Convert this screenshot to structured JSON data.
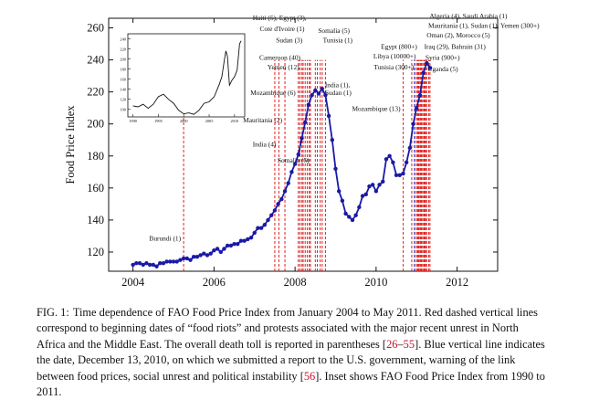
{
  "chart_data": {
    "type": "line",
    "ylabel": "Food Price Index",
    "xlabel": "",
    "xlim": [
      2003.4,
      2013.0
    ],
    "ylim": [
      108,
      266
    ],
    "xticks": [
      2004,
      2006,
      2008,
      2010,
      2012
    ],
    "yticks": [
      120,
      140,
      160,
      180,
      200,
      220,
      240,
      260
    ],
    "series": [
      {
        "name": "FAO Food Price Index",
        "color": "#1a1aa6",
        "x": [
          2004.0,
          2004.083,
          2004.167,
          2004.25,
          2004.333,
          2004.417,
          2004.5,
          2004.583,
          2004.667,
          2004.75,
          2004.833,
          2004.917,
          2005.0,
          2005.083,
          2005.167,
          2005.25,
          2005.333,
          2005.417,
          2005.5,
          2005.583,
          2005.667,
          2005.75,
          2005.833,
          2005.917,
          2006.0,
          2006.083,
          2006.167,
          2006.25,
          2006.333,
          2006.417,
          2006.5,
          2006.583,
          2006.667,
          2006.75,
          2006.833,
          2006.917,
          2007.0,
          2007.083,
          2007.167,
          2007.25,
          2007.333,
          2007.417,
          2007.5,
          2007.583,
          2007.667,
          2007.75,
          2007.833,
          2007.917,
          2008.0,
          2008.083,
          2008.167,
          2008.25,
          2008.333,
          2008.417,
          2008.5,
          2008.583,
          2008.667,
          2008.75,
          2008.833,
          2008.917,
          2009.0,
          2009.083,
          2009.167,
          2009.25,
          2009.333,
          2009.417,
          2009.5,
          2009.583,
          2009.667,
          2009.75,
          2009.833,
          2009.917,
          2010.0,
          2010.083,
          2010.167,
          2010.25,
          2010.333,
          2010.417,
          2010.5,
          2010.583,
          2010.667,
          2010.75,
          2010.833,
          2010.917,
          2011.0,
          2011.083,
          2011.167,
          2011.25,
          2011.333
        ],
        "y": [
          112,
          113,
          113,
          112,
          113,
          112,
          112,
          111,
          113,
          113,
          114,
          114,
          114,
          114,
          115,
          116,
          116,
          115,
          117,
          117,
          118,
          119,
          118,
          119,
          121,
          122,
          120,
          122,
          124,
          124,
          125,
          125,
          127,
          127,
          128,
          129,
          132,
          135,
          135,
          137,
          140,
          143,
          146,
          150,
          153,
          158,
          163,
          170,
          175,
          181,
          191,
          201,
          212,
          218,
          221,
          219,
          222,
          218,
          205,
          190,
          172,
          158,
          152,
          144,
          142,
          140,
          143,
          148,
          155,
          156,
          161,
          162,
          158,
          162,
          164,
          178,
          180,
          176,
          168,
          168,
          169,
          176,
          185,
          200,
          210,
          218,
          232,
          238,
          235
        ]
      }
    ],
    "event_lines": {
      "color": "#e02020",
      "dates": [
        2005.25,
        2007.5,
        2007.6,
        2007.75,
        2008.08,
        2008.12,
        2008.17,
        2008.2,
        2008.25,
        2008.3,
        2008.35,
        2008.38,
        2008.5,
        2008.55,
        2008.62,
        2008.67,
        2008.75,
        2010.67,
        2010.88,
        2011.0,
        2011.03,
        2011.05,
        2011.08,
        2011.1,
        2011.12,
        2011.15,
        2011.18,
        2011.2,
        2011.22,
        2011.25,
        2011.3,
        2011.33
      ]
    },
    "highlight_line": {
      "date": 2010.95,
      "color": "#2020c0",
      "label": "December 13, 2010"
    },
    "annotations": [
      {
        "text": "Burundi (1)",
        "x": 2005.25,
        "y": 127
      },
      {
        "text": "Somalia (5)",
        "x": 2007.5,
        "y": 176
      },
      {
        "text": "India (4)",
        "x": 2007.6,
        "y": 186
      },
      {
        "text": "Mauritania (2)",
        "x": 2007.75,
        "y": 201
      },
      {
        "text": "Mozambique (6)",
        "x": 2008.08,
        "y": 218
      },
      {
        "text": "Yemen (12)",
        "x": 2008.17,
        "y": 234
      },
      {
        "text": "Cameroon (40)",
        "x": 2008.2,
        "y": 240
      },
      {
        "text": "Sudan (3)",
        "x": 2008.25,
        "y": 251
      },
      {
        "text": "Cote d'Ivoire (1)",
        "x": 2008.3,
        "y": 258
      },
      {
        "text": "Haiti (5), Egypt (3),",
        "x": 2008.35,
        "y": 265
      },
      {
        "text": "Somalia (5)",
        "x": 2008.5,
        "y": 257
      },
      {
        "text": "Tunisia (1)",
        "x": 2008.62,
        "y": 251
      },
      {
        "text": "India (1),",
        "x": 2008.67,
        "y": 223
      },
      {
        "text": "Sudan (1)",
        "x": 2008.67,
        "y": 218
      },
      {
        "text": "Mozambique (13)",
        "x": 2010.67,
        "y": 208
      },
      {
        "text": "Tunisia (300+)",
        "x": 2011.0,
        "y": 234
      },
      {
        "text": "Libya (10000+)",
        "x": 2011.05,
        "y": 241
      },
      {
        "text": "Egypt (800+)",
        "x": 2011.08,
        "y": 247
      },
      {
        "text": "Iraq (29), Bahrain (31)",
        "x": 2011.12,
        "y": 247
      },
      {
        "text": "Syria (900+)",
        "x": 2011.15,
        "y": 240
      },
      {
        "text": "Uganda (5)",
        "x": 2011.2,
        "y": 233
      },
      {
        "text": "Oman (2), Morocco (5)",
        "x": 2011.18,
        "y": 254
      },
      {
        "text": "Mauritania (1), Sudan (1), Yemen (300+)",
        "x": 2011.22,
        "y": 260
      },
      {
        "text": "Algeria (4), Saudi Arabia (1)",
        "x": 2011.25,
        "y": 266
      }
    ],
    "inset": {
      "type": "line",
      "title": "FAO Food Price Index 1990-2011",
      "xticks": [
        1990,
        1995,
        2000,
        2005,
        2010
      ],
      "yticks": [
        100,
        120,
        140,
        160,
        180,
        200,
        220,
        240
      ],
      "xlim": [
        1989,
        2012
      ],
      "ylim": [
        85,
        250
      ],
      "x": [
        1990,
        1991,
        1992,
        1993,
        1994,
        1995,
        1996,
        1997,
        1998,
        1999,
        2000,
        2001,
        2002,
        2003,
        2004,
        2005,
        2006,
        2007,
        2007.5,
        2008,
        2008.3,
        2008.6,
        2009,
        2009.5,
        2010,
        2010.5,
        2011,
        2011.3
      ],
      "y": [
        107,
        105,
        110,
        102,
        110,
        125,
        130,
        120,
        112,
        98,
        91,
        93,
        90,
        98,
        112,
        115,
        125,
        150,
        165,
        198,
        216,
        205,
        148,
        158,
        165,
        178,
        230,
        236
      ]
    }
  },
  "caption": {
    "prefix": "FIG. 1:",
    "part1": "Time dependence of FAO Food Price Index from January 2004 to May 2011. Red dashed vertical lines correspond to beginning dates of “food riots” and protests associated with the major recent unrest in North Africa and the Middle East. The overall death toll is reported in parentheses [",
    "ref1": "26",
    "dash": "–",
    "ref2": "55",
    "part2": "]. Blue vertical line indicates the date, December 13, 2010, on which we submitted a report to the U.S. government, warning of the link between food prices, social unrest and political instability [",
    "ref3": "56",
    "part3": "]. Inset shows FAO Food Price Index from 1990 to 2011."
  }
}
